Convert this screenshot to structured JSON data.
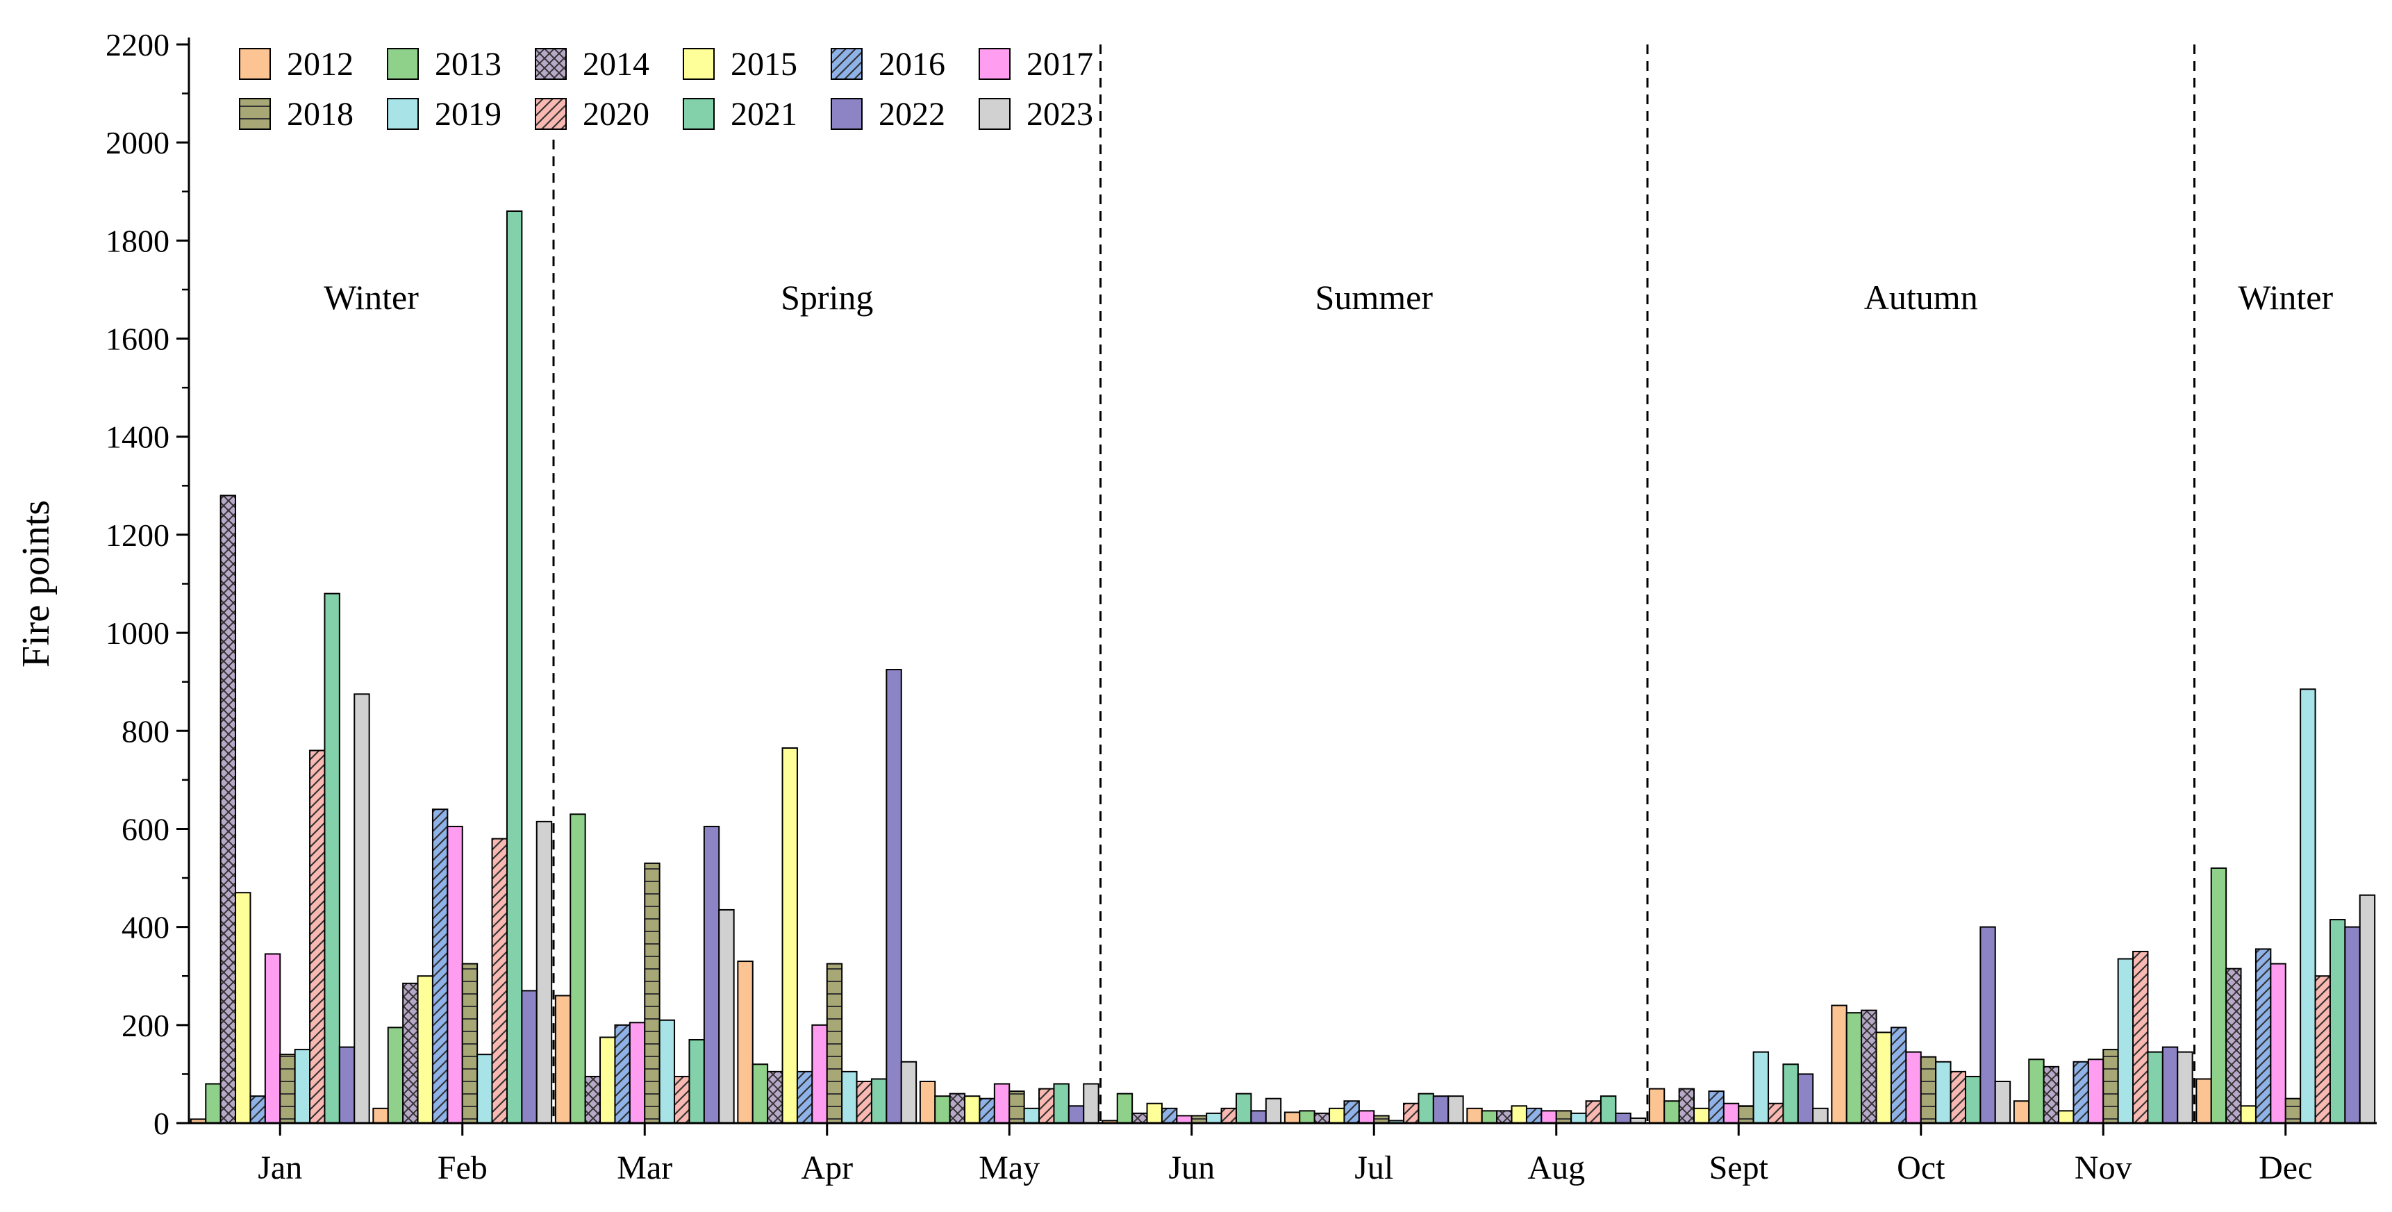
{
  "chart_data": {
    "type": "bar",
    "ylabel": "Fire points",
    "xlabel": "",
    "ylim": [
      0,
      2200
    ],
    "yticks": [
      0,
      200,
      400,
      600,
      800,
      1000,
      1200,
      1400,
      1600,
      1800,
      2000,
      2200
    ],
    "grid": false,
    "legend_position": "top-left",
    "categories": [
      "Jan",
      "Feb",
      "Mar",
      "Apr",
      "May",
      "Jun",
      "Jul",
      "Aug",
      "Sept",
      "Oct",
      "Nov",
      "Dec"
    ],
    "seasons": [
      {
        "label": "Winter",
        "months": [
          "Jan",
          "Feb"
        ]
      },
      {
        "label": "Spring",
        "months": [
          "Mar",
          "Apr",
          "May"
        ]
      },
      {
        "label": "Summer",
        "months": [
          "Jun",
          "Jul",
          "Aug"
        ]
      },
      {
        "label": "Autumn",
        "months": [
          "Sept",
          "Oct",
          "Nov"
        ]
      },
      {
        "label": "Winter",
        "months": [
          "Dec"
        ]
      }
    ],
    "series": [
      {
        "name": "2012",
        "color": "#fcc493",
        "pattern": "solid",
        "values": [
          8,
          30,
          260,
          330,
          85,
          5,
          22,
          30,
          70,
          240,
          45,
          90
        ]
      },
      {
        "name": "2013",
        "color": "#8fd18b",
        "pattern": "solid",
        "values": [
          80,
          195,
          630,
          120,
          55,
          60,
          25,
          25,
          45,
          225,
          130,
          520
        ]
      },
      {
        "name": "2014",
        "color": "#b9a9c9",
        "pattern": "crosshatch",
        "values": [
          1280,
          285,
          95,
          105,
          60,
          20,
          20,
          25,
          70,
          230,
          115,
          315
        ]
      },
      {
        "name": "2015",
        "color": "#ffff99",
        "pattern": "solid",
        "values": [
          470,
          300,
          175,
          765,
          55,
          40,
          30,
          35,
          30,
          185,
          25,
          35
        ]
      },
      {
        "name": "2016",
        "color": "#8fb3e8",
        "pattern": "diagonal",
        "values": [
          55,
          640,
          200,
          105,
          50,
          30,
          45,
          30,
          65,
          195,
          125,
          355
        ]
      },
      {
        "name": "2017",
        "color": "#ff9ef0",
        "pattern": "solid",
        "values": [
          345,
          605,
          205,
          200,
          80,
          15,
          25,
          25,
          40,
          145,
          130,
          325
        ]
      },
      {
        "name": "2018",
        "color": "#a8a877",
        "pattern": "grid",
        "values": [
          140,
          325,
          530,
          325,
          65,
          15,
          15,
          25,
          35,
          135,
          150,
          50
        ]
      },
      {
        "name": "2019",
        "color": "#a8e3e8",
        "pattern": "solid",
        "values": [
          150,
          140,
          210,
          105,
          30,
          20,
          5,
          20,
          145,
          125,
          335,
          885
        ]
      },
      {
        "name": "2020",
        "color": "#f9b9b2",
        "pattern": "diagonal",
        "values": [
          760,
          580,
          95,
          85,
          70,
          30,
          40,
          45,
          40,
          105,
          350,
          300
        ]
      },
      {
        "name": "2021",
        "color": "#82d1aa",
        "pattern": "solid",
        "values": [
          1080,
          1860,
          170,
          90,
          80,
          60,
          60,
          55,
          120,
          95,
          145,
          415
        ]
      },
      {
        "name": "2022",
        "color": "#8c84c4",
        "pattern": "solid",
        "values": [
          155,
          270,
          605,
          925,
          35,
          25,
          55,
          20,
          100,
          400,
          155,
          400
        ]
      },
      {
        "name": "2023",
        "color": "#d1d1d1",
        "pattern": "solid",
        "values": [
          875,
          615,
          435,
          125,
          80,
          50,
          55,
          10,
          30,
          85,
          145,
          465
        ]
      }
    ]
  }
}
